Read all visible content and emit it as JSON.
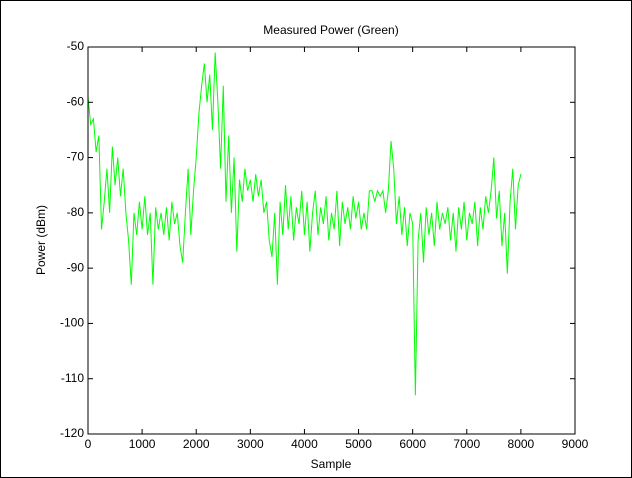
{
  "chart_data": {
    "type": "line",
    "title": "Measured Power (Green)",
    "x_label": "Sample",
    "y_label": "Power (dBm)",
    "color": "#00ff00",
    "grid": false,
    "xlim": [
      0,
      9000
    ],
    "xticks": [
      0,
      1000,
      2000,
      3000,
      4000,
      5000,
      6000,
      7000,
      8000,
      9000
    ],
    "ylim": [
      -120,
      -50
    ],
    "yticks": [
      -120,
      -110,
      -100,
      -90,
      -80,
      -70,
      -60,
      -50
    ],
    "x": [
      0,
      50,
      100,
      150,
      200,
      250,
      300,
      350,
      400,
      450,
      500,
      550,
      600,
      650,
      700,
      750,
      800,
      850,
      900,
      950,
      1000,
      1050,
      1100,
      1150,
      1200,
      1250,
      1300,
      1350,
      1400,
      1450,
      1500,
      1550,
      1600,
      1650,
      1700,
      1750,
      1800,
      1850,
      1900,
      1950,
      2000,
      2050,
      2100,
      2150,
      2200,
      2250,
      2300,
      2350,
      2400,
      2450,
      2500,
      2550,
      2600,
      2650,
      2700,
      2750,
      2800,
      2850,
      2900,
      2950,
      3000,
      3050,
      3100,
      3150,
      3200,
      3250,
      3300,
      3350,
      3400,
      3450,
      3500,
      3550,
      3600,
      3650,
      3700,
      3750,
      3800,
      3850,
      3900,
      3950,
      4000,
      4050,
      4100,
      4150,
      4200,
      4250,
      4300,
      4350,
      4400,
      4450,
      4500,
      4550,
      4600,
      4650,
      4700,
      4750,
      4800,
      4850,
      4900,
      4950,
      5000,
      5050,
      5100,
      5150,
      5200,
      5250,
      5300,
      5350,
      5400,
      5450,
      5500,
      5550,
      5600,
      5650,
      5700,
      5750,
      5800,
      5850,
      5900,
      5950,
      6000,
      6050,
      6100,
      6150,
      6200,
      6250,
      6300,
      6350,
      6400,
      6450,
      6500,
      6550,
      6600,
      6650,
      6700,
      6750,
      6800,
      6850,
      6900,
      6950,
      7000,
      7050,
      7100,
      7150,
      7200,
      7250,
      7300,
      7350,
      7400,
      7450,
      7500,
      7550,
      7600,
      7650,
      7700,
      7750,
      7800,
      7850,
      7900,
      7950,
      8000
    ],
    "values": [
      -59,
      -64,
      -63,
      -69,
      -66,
      -83,
      -78,
      -72,
      -80,
      -68,
      -75,
      -70,
      -77,
      -72,
      -80,
      -85,
      -93,
      -80,
      -84,
      -78,
      -83,
      -77,
      -84,
      -80,
      -93,
      -79,
      -83,
      -80,
      -84,
      -79,
      -85,
      -78,
      -82,
      -80,
      -86,
      -89,
      -80,
      -72,
      -84,
      -76,
      -70,
      -62,
      -57,
      -53,
      -60,
      -55,
      -65,
      -51,
      -60,
      -72,
      -57,
      -78,
      -66,
      -80,
      -70,
      -87,
      -74,
      -78,
      -72,
      -76,
      -74,
      -78,
      -73,
      -77,
      -74,
      -80,
      -78,
      -85,
      -88,
      -80,
      -93,
      -78,
      -84,
      -75,
      -83,
      -77,
      -85,
      -79,
      -82,
      -76,
      -84,
      -78,
      -87,
      -80,
      -76,
      -84,
      -79,
      -82,
      -77,
      -85,
      -80,
      -83,
      -76,
      -86,
      -78,
      -82,
      -79,
      -83,
      -77,
      -81,
      -78,
      -83,
      -80,
      -83,
      -76,
      -76,
      -78,
      -76,
      -77,
      -76,
      -80,
      -76,
      -67,
      -72,
      -82,
      -77,
      -84,
      -79,
      -86,
      -80,
      -82,
      -113,
      -85,
      -80,
      -89,
      -79,
      -84,
      -80,
      -86,
      -78,
      -83,
      -80,
      -82,
      -79,
      -85,
      -80,
      -87,
      -79,
      -83,
      -78,
      -85,
      -80,
      -82,
      -78,
      -86,
      -79,
      -83,
      -77,
      -80,
      -76,
      -70,
      -81,
      -76,
      -86,
      -80,
      -91,
      -78,
      -72,
      -83,
      -75,
      -73
    ]
  }
}
